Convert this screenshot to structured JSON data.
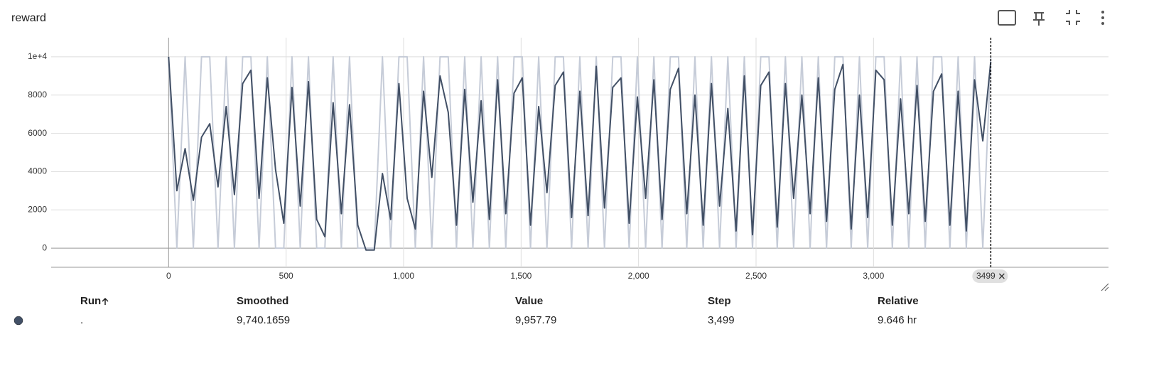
{
  "chart_data": {
    "type": "line",
    "title": "reward",
    "x": [
      0,
      35,
      70,
      105,
      140,
      175,
      210,
      245,
      280,
      315,
      350,
      385,
      420,
      455,
      490,
      525,
      560,
      595,
      630,
      665,
      700,
      735,
      770,
      805,
      840,
      875,
      910,
      945,
      980,
      1015,
      1050,
      1085,
      1120,
      1155,
      1190,
      1225,
      1260,
      1295,
      1330,
      1365,
      1400,
      1435,
      1470,
      1505,
      1540,
      1575,
      1610,
      1645,
      1680,
      1715,
      1750,
      1785,
      1820,
      1855,
      1890,
      1925,
      1960,
      1995,
      2030,
      2065,
      2100,
      2135,
      2170,
      2205,
      2240,
      2275,
      2310,
      2345,
      2380,
      2415,
      2450,
      2485,
      2520,
      2555,
      2590,
      2625,
      2660,
      2695,
      2730,
      2765,
      2800,
      2835,
      2870,
      2905,
      2940,
      2975,
      3010,
      3045,
      3080,
      3115,
      3150,
      3185,
      3220,
      3255,
      3290,
      3325,
      3360,
      3395,
      3430,
      3465,
      3499
    ],
    "series": [
      {
        "name": "Value",
        "color": "#c6ccd8",
        "values": [
          10000,
          0,
          10000,
          0,
          10000,
          10000,
          0,
          10000,
          0,
          10000,
          10000,
          0,
          10000,
          0,
          0,
          10000,
          0,
          10000,
          0,
          0,
          10000,
          0,
          10000,
          0,
          0,
          0,
          10000,
          0,
          10000,
          10000,
          0,
          10000,
          0,
          10000,
          10000,
          0,
          10000,
          0,
          10000,
          0,
          10000,
          0,
          10000,
          10000,
          0,
          10000,
          0,
          10000,
          10000,
          0,
          10000,
          0,
          10000,
          0,
          10000,
          10000,
          0,
          10000,
          0,
          10000,
          0,
          10000,
          10000,
          0,
          10000,
          0,
          10000,
          0,
          10000,
          0,
          10000,
          0,
          10000,
          10000,
          0,
          10000,
          0,
          10000,
          0,
          10000,
          0,
          10000,
          10000,
          0,
          10000,
          0,
          10000,
          10000,
          0,
          10000,
          0,
          10000,
          0,
          10000,
          10000,
          0,
          10000,
          0,
          10000,
          0,
          9957.79
        ]
      },
      {
        "name": "Smoothed",
        "color": "#425066",
        "values": [
          10000,
          3000,
          5200,
          2500,
          5800,
          6500,
          3200,
          7400,
          2800,
          8600,
          9300,
          2600,
          8900,
          4100,
          1300,
          8400,
          2200,
          8700,
          1500,
          600,
          7600,
          1800,
          7500,
          1200,
          -100,
          -100,
          3900,
          1500,
          8600,
          2600,
          1000,
          8200,
          3700,
          9000,
          7100,
          1200,
          8300,
          2400,
          7700,
          1500,
          8800,
          1800,
          8100,
          8900,
          1200,
          7400,
          2900,
          8500,
          9200,
          1600,
          8200,
          1700,
          9500,
          2100,
          8400,
          8900,
          1300,
          7900,
          2600,
          8800,
          1500,
          8300,
          9400,
          1800,
          8000,
          1200,
          8600,
          2200,
          7300,
          900,
          9000,
          700,
          8500,
          9200,
          1100,
          8600,
          2600,
          8000,
          1800,
          8900,
          1400,
          8300,
          9600,
          1000,
          8000,
          1600,
          9300,
          8800,
          1200,
          7800,
          1800,
          8500,
          1400,
          8200,
          9100,
          1200,
          8200,
          900,
          8800,
          5600,
          9740.1659
        ]
      }
    ],
    "xlim": [
      -500,
      4000
    ],
    "ylim": [
      -1000,
      11000
    ],
    "xticks": [
      0,
      500,
      {
        "value": 1000,
        "label": "1,000"
      },
      {
        "value": 1500,
        "label": "1,500"
      },
      {
        "value": 2000,
        "label": "2,000"
      },
      {
        "value": 2500,
        "label": "2,500"
      },
      {
        "value": 3000,
        "label": "3,000"
      }
    ],
    "yticks": [
      0,
      2000,
      4000,
      6000,
      8000,
      {
        "value": 10000,
        "label": "1e+4"
      }
    ],
    "grid": true,
    "cursor_step": 3499
  },
  "table": {
    "headers": [
      "Run",
      "Smoothed",
      "Value",
      "Step",
      "Relative"
    ],
    "rows": [
      [
        ".",
        "9,740.1659",
        "9,957.79",
        "3,499",
        "9.646 hr"
      ]
    ]
  }
}
